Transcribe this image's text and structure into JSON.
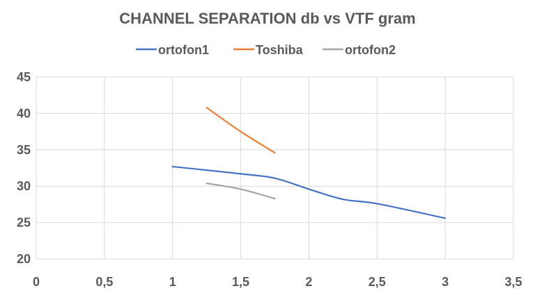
{
  "chart_data": {
    "type": "line",
    "title": "CHANNEL SEPARATION db vs  VTF gram",
    "xlabel": "",
    "ylabel": "",
    "xlim": [
      0,
      3.5
    ],
    "ylim": [
      20,
      45
    ],
    "x_ticks": [
      "0",
      "0,5",
      "1",
      "1,5",
      "2",
      "2,5",
      "3",
      "3,5"
    ],
    "y_ticks": [
      "20",
      "25",
      "30",
      "35",
      "40",
      "45"
    ],
    "grid": true,
    "legend_position": "top",
    "series": [
      {
        "name": "ortofon1",
        "color": "#4472C4",
        "x": [
          1,
          1.5,
          1.75,
          2,
          2.25,
          2.5,
          3
        ],
        "y": [
          32.7,
          31.7,
          31.1,
          29.6,
          28.2,
          27.6,
          25.6
        ]
      },
      {
        "name": "Toshiba",
        "color": "#ED7D31",
        "x": [
          1.25,
          1.5,
          1.75
        ],
        "y": [
          40.8,
          37.5,
          34.6
        ]
      },
      {
        "name": "ortofon2",
        "color": "#A5A5A5",
        "x": [
          1.25,
          1.5,
          1.75
        ],
        "y": [
          30.4,
          29.6,
          28.3
        ]
      }
    ]
  }
}
